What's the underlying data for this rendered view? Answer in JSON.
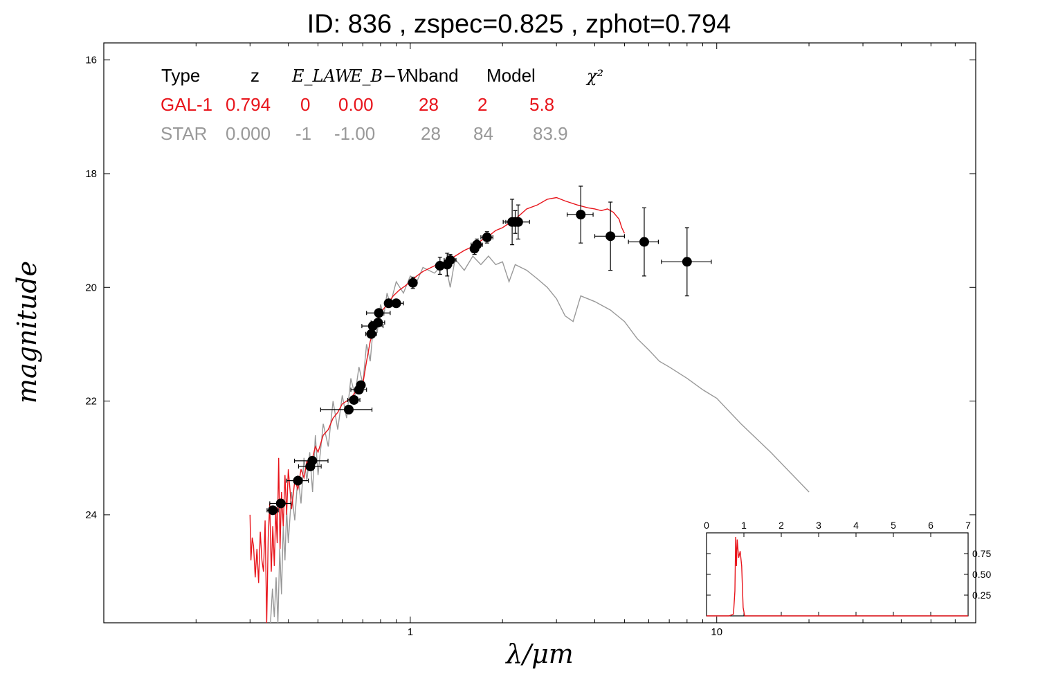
{
  "title": "ID:  836   , zspec=0.825 , zphot=0.794",
  "colors": {
    "gal": "#e8141b",
    "star": "#999999",
    "points": "#000000"
  },
  "table": {
    "headers": [
      "Type",
      "z",
      "E_LAW",
      "E_B−V",
      "Nband",
      "Model",
      "χ²"
    ],
    "rows": [
      {
        "cells": [
          "GAL-1",
          "0.794",
          "0",
          "0.00",
          "28",
          "2",
          "5.8"
        ],
        "color": "#e8141b"
      },
      {
        "cells": [
          "STAR",
          "0.000",
          "-1",
          "-1.00",
          "28",
          "84",
          "83.9"
        ],
        "color": "#999999"
      }
    ]
  },
  "chart_data": {
    "type": "scatter",
    "xlabel": "λ/μm",
    "ylabel": "magnitude",
    "xscale": "log",
    "xlim": [
      0.1,
      70
    ],
    "ylim": [
      25.9,
      15.7
    ],
    "x_ticks": [
      {
        "value": 1,
        "label": "1"
      },
      {
        "value": 10,
        "label": "10"
      }
    ],
    "y_ticks": [
      {
        "value": 16,
        "label": "16"
      },
      {
        "value": 18,
        "label": "18"
      },
      {
        "value": 20,
        "label": "20"
      },
      {
        "value": 22,
        "label": "22"
      },
      {
        "value": 24,
        "label": "24"
      }
    ],
    "photometry": [
      {
        "x": 0.356,
        "y": 23.92,
        "xerr_lo": 0.015,
        "xerr_hi": 0.015,
        "yerr": 0.05
      },
      {
        "x": 0.378,
        "y": 23.8,
        "xerr_lo": 0.03,
        "xerr_hi": 0.03,
        "yerr": 0.05
      },
      {
        "x": 0.43,
        "y": 23.4,
        "xerr_lo": 0.035,
        "xerr_hi": 0.035,
        "yerr": 0.05
      },
      {
        "x": 0.472,
        "y": 23.15,
        "xerr_lo": 0.04,
        "xerr_hi": 0.04,
        "yerr": 0.05
      },
      {
        "x": 0.479,
        "y": 23.05,
        "xerr_lo": 0.06,
        "xerr_hi": 0.06,
        "yerr": 0.05
      },
      {
        "x": 0.63,
        "y": 22.15,
        "xerr_lo": 0.12,
        "xerr_hi": 0.12,
        "yerr": 0.05
      },
      {
        "x": 0.655,
        "y": 21.98,
        "xerr_lo": 0.03,
        "xerr_hi": 0.03,
        "yerr": 0.05
      },
      {
        "x": 0.68,
        "y": 21.8,
        "xerr_lo": 0.04,
        "xerr_hi": 0.04,
        "yerr": 0.05
      },
      {
        "x": 0.69,
        "y": 21.72,
        "xerr_lo": 0.02,
        "xerr_hi": 0.02,
        "yerr": 0.05
      },
      {
        "x": 0.746,
        "y": 20.82,
        "xerr_lo": 0.03,
        "xerr_hi": 0.03,
        "yerr": 0.05
      },
      {
        "x": 0.755,
        "y": 20.68,
        "xerr_lo": 0.06,
        "xerr_hi": 0.06,
        "yerr": 0.05
      },
      {
        "x": 0.785,
        "y": 20.62,
        "xerr_lo": 0.04,
        "xerr_hi": 0.04,
        "yerr": 0.05
      },
      {
        "x": 0.79,
        "y": 20.45,
        "xerr_lo": 0.07,
        "xerr_hi": 0.07,
        "yerr": 0.05
      },
      {
        "x": 0.85,
        "y": 20.28,
        "xerr_lo": 0.02,
        "xerr_hi": 0.02,
        "yerr": 0.05
      },
      {
        "x": 0.9,
        "y": 20.28,
        "xerr_lo": 0.05,
        "xerr_hi": 0.05,
        "yerr": 0.05
      },
      {
        "x": 1.02,
        "y": 19.92,
        "xerr_lo": 0.02,
        "xerr_hi": 0.02,
        "yerr": 0.1
      },
      {
        "x": 1.25,
        "y": 19.62,
        "xerr_lo": 0.04,
        "xerr_hi": 0.04,
        "yerr": 0.15
      },
      {
        "x": 1.32,
        "y": 19.6,
        "xerr_lo": 0.04,
        "xerr_hi": 0.04,
        "yerr": 0.2
      },
      {
        "x": 1.35,
        "y": 19.52,
        "xerr_lo": 0.06,
        "xerr_hi": 0.06,
        "yerr": 0.1
      },
      {
        "x": 1.62,
        "y": 19.32,
        "xerr_lo": 0.04,
        "xerr_hi": 0.04,
        "yerr": 0.1
      },
      {
        "x": 1.65,
        "y": 19.25,
        "xerr_lo": 0.07,
        "xerr_hi": 0.07,
        "yerr": 0.1
      },
      {
        "x": 1.78,
        "y": 19.12,
        "xerr_lo": 0.08,
        "xerr_hi": 0.08,
        "yerr": 0.1
      },
      {
        "x": 2.15,
        "y": 18.85,
        "xerr_lo": 0.14,
        "xerr_hi": 0.14,
        "yerr": 0.4
      },
      {
        "x": 2.2,
        "y": 18.85,
        "xerr_lo": 0.08,
        "xerr_hi": 0.08,
        "yerr": 0.2
      },
      {
        "x": 2.25,
        "y": 18.85,
        "xerr_lo": 0.2,
        "xerr_hi": 0.2,
        "yerr": 0.3
      },
      {
        "x": 3.6,
        "y": 18.72,
        "xerr_lo": 0.35,
        "xerr_hi": 0.35,
        "yerr": 0.5
      },
      {
        "x": 4.5,
        "y": 19.1,
        "xerr_lo": 0.5,
        "xerr_hi": 0.5,
        "yerr": 0.6
      },
      {
        "x": 5.8,
        "y": 19.2,
        "xerr_lo": 0.65,
        "xerr_hi": 0.65,
        "yerr": 0.6
      },
      {
        "x": 8.0,
        "y": 19.55,
        "xerr_lo": 1.4,
        "xerr_hi": 1.6,
        "yerr": 0.6
      }
    ],
    "gal_sed": [
      [
        0.3,
        24.0
      ],
      [
        0.302,
        24.8
      ],
      [
        0.305,
        24.4
      ],
      [
        0.308,
        24.55
      ],
      [
        0.312,
        25.1
      ],
      [
        0.316,
        24.6
      ],
      [
        0.32,
        25.2
      ],
      [
        0.324,
        24.3
      ],
      [
        0.328,
        24.8
      ],
      [
        0.332,
        25.0
      ],
      [
        0.336,
        24.1
      ],
      [
        0.34,
        25.9
      ],
      [
        0.344,
        24.4
      ],
      [
        0.348,
        23.8
      ],
      [
        0.352,
        25.0
      ],
      [
        0.356,
        24.2
      ],
      [
        0.36,
        24.9
      ],
      [
        0.364,
        23.9
      ],
      [
        0.368,
        24.5
      ],
      [
        0.372,
        23.0
      ],
      [
        0.376,
        24.6
      ],
      [
        0.38,
        23.6
      ],
      [
        0.385,
        24.2
      ],
      [
        0.39,
        23.3
      ],
      [
        0.395,
        24.0
      ],
      [
        0.4,
        23.2
      ],
      [
        0.41,
        23.9
      ],
      [
        0.42,
        23.4
      ],
      [
        0.43,
        23.55
      ],
      [
        0.44,
        23.2
      ],
      [
        0.45,
        23.35
      ],
      [
        0.46,
        23.05
      ],
      [
        0.47,
        23.2
      ],
      [
        0.48,
        23.0
      ],
      [
        0.49,
        22.8
      ],
      [
        0.5,
        22.9
      ],
      [
        0.52,
        22.6
      ],
      [
        0.54,
        22.5
      ],
      [
        0.56,
        22.3
      ],
      [
        0.58,
        22.2
      ],
      [
        0.6,
        22.05
      ],
      [
        0.62,
        22.0
      ],
      [
        0.64,
        21.95
      ],
      [
        0.66,
        21.85
      ],
      [
        0.68,
        21.75
      ],
      [
        0.7,
        21.7
      ],
      [
        0.72,
        21.3
      ],
      [
        0.74,
        20.95
      ],
      [
        0.76,
        20.75
      ],
      [
        0.78,
        20.6
      ],
      [
        0.8,
        20.45
      ],
      [
        0.84,
        20.3
      ],
      [
        0.88,
        20.15
      ],
      [
        0.92,
        20.05
      ],
      [
        0.96,
        19.98
      ],
      [
        1.0,
        19.9
      ],
      [
        1.05,
        19.8
      ],
      [
        1.1,
        19.72
      ],
      [
        1.2,
        19.62
      ],
      [
        1.3,
        19.55
      ],
      [
        1.4,
        19.45
      ],
      [
        1.5,
        19.35
      ],
      [
        1.6,
        19.28
      ],
      [
        1.7,
        19.18
      ],
      [
        1.8,
        19.1
      ],
      [
        1.9,
        19.0
      ],
      [
        2.0,
        18.95
      ],
      [
        2.2,
        18.8
      ],
      [
        2.4,
        18.62
      ],
      [
        2.6,
        18.55
      ],
      [
        2.8,
        18.45
      ],
      [
        3.0,
        18.42
      ],
      [
        3.2,
        18.48
      ],
      [
        3.5,
        18.55
      ],
      [
        3.8,
        18.6
      ],
      [
        4.0,
        18.62
      ],
      [
        4.2,
        18.65
      ],
      [
        4.4,
        18.62
      ],
      [
        4.6,
        18.68
      ],
      [
        4.8,
        18.8
      ],
      [
        4.9,
        18.95
      ],
      [
        5.0,
        19.05
      ]
    ],
    "star_sed": [
      [
        0.35,
        26.0
      ],
      [
        0.355,
        25.3
      ],
      [
        0.36,
        25.8
      ],
      [
        0.365,
        25.1
      ],
      [
        0.37,
        25.9
      ],
      [
        0.375,
        24.6
      ],
      [
        0.38,
        25.4
      ],
      [
        0.385,
        24.2
      ],
      [
        0.39,
        24.8
      ],
      [
        0.395,
        23.9
      ],
      [
        0.4,
        24.5
      ],
      [
        0.41,
        23.6
      ],
      [
        0.42,
        24.1
      ],
      [
        0.43,
        23.3
      ],
      [
        0.44,
        23.8
      ],
      [
        0.45,
        23.0
      ],
      [
        0.46,
        23.4
      ],
      [
        0.47,
        22.9
      ],
      [
        0.48,
        23.6
      ],
      [
        0.49,
        22.6
      ],
      [
        0.5,
        23.3
      ],
      [
        0.52,
        22.4
      ],
      [
        0.54,
        22.8
      ],
      [
        0.56,
        22.0
      ],
      [
        0.58,
        22.5
      ],
      [
        0.6,
        21.9
      ],
      [
        0.62,
        22.3
      ],
      [
        0.64,
        21.6
      ],
      [
        0.66,
        21.9
      ],
      [
        0.68,
        21.4
      ],
      [
        0.7,
        21.7
      ],
      [
        0.72,
        21.0
      ],
      [
        0.74,
        21.3
      ],
      [
        0.76,
        20.6
      ],
      [
        0.78,
        20.8
      ],
      [
        0.8,
        20.3
      ],
      [
        0.82,
        20.5
      ],
      [
        0.84,
        20.1
      ],
      [
        0.86,
        20.3
      ],
      [
        0.9,
        19.9
      ],
      [
        0.95,
        20.1
      ],
      [
        1.0,
        19.8
      ],
      [
        1.05,
        19.9
      ],
      [
        1.1,
        19.65
      ],
      [
        1.2,
        19.75
      ],
      [
        1.3,
        19.55
      ],
      [
        1.35,
        20.0
      ],
      [
        1.4,
        19.5
      ],
      [
        1.5,
        19.7
      ],
      [
        1.6,
        19.45
      ],
      [
        1.7,
        19.6
      ],
      [
        1.8,
        19.45
      ],
      [
        1.9,
        19.6
      ],
      [
        2.0,
        19.55
      ],
      [
        2.1,
        19.9
      ],
      [
        2.2,
        19.6
      ],
      [
        2.4,
        19.7
      ],
      [
        2.6,
        19.85
      ],
      [
        2.8,
        20.0
      ],
      [
        3.0,
        20.2
      ],
      [
        3.2,
        20.5
      ],
      [
        3.4,
        20.6
      ],
      [
        3.6,
        20.15
      ],
      [
        4.0,
        20.25
      ],
      [
        4.5,
        20.4
      ],
      [
        5.0,
        20.6
      ],
      [
        5.5,
        20.9
      ],
      [
        6.0,
        21.1
      ],
      [
        6.5,
        21.3
      ],
      [
        7.0,
        21.4
      ],
      [
        8.0,
        21.6
      ],
      [
        9.0,
        21.8
      ],
      [
        10.0,
        21.95
      ],
      [
        12.0,
        22.4
      ],
      [
        15.0,
        22.9
      ],
      [
        20.0,
        23.6
      ]
    ],
    "inset": {
      "x_ticks": [
        "0",
        "1",
        "2",
        "3",
        "4",
        "5",
        "6",
        "7"
      ],
      "y_ticks": [
        "0.25",
        "0.50",
        "0.75"
      ],
      "xlim": [
        0,
        7
      ],
      "ylim": [
        0,
        1.0
      ],
      "pdz": [
        [
          0,
          0
        ],
        [
          0.6,
          0
        ],
        [
          0.72,
          0.02
        ],
        [
          0.76,
          0.3
        ],
        [
          0.78,
          0.95
        ],
        [
          0.8,
          0.6
        ],
        [
          0.82,
          0.92
        ],
        [
          0.86,
          0.7
        ],
        [
          0.9,
          0.78
        ],
        [
          0.94,
          0.6
        ],
        [
          0.98,
          0.1
        ],
        [
          1.02,
          0.0
        ],
        [
          7,
          0
        ]
      ]
    }
  }
}
